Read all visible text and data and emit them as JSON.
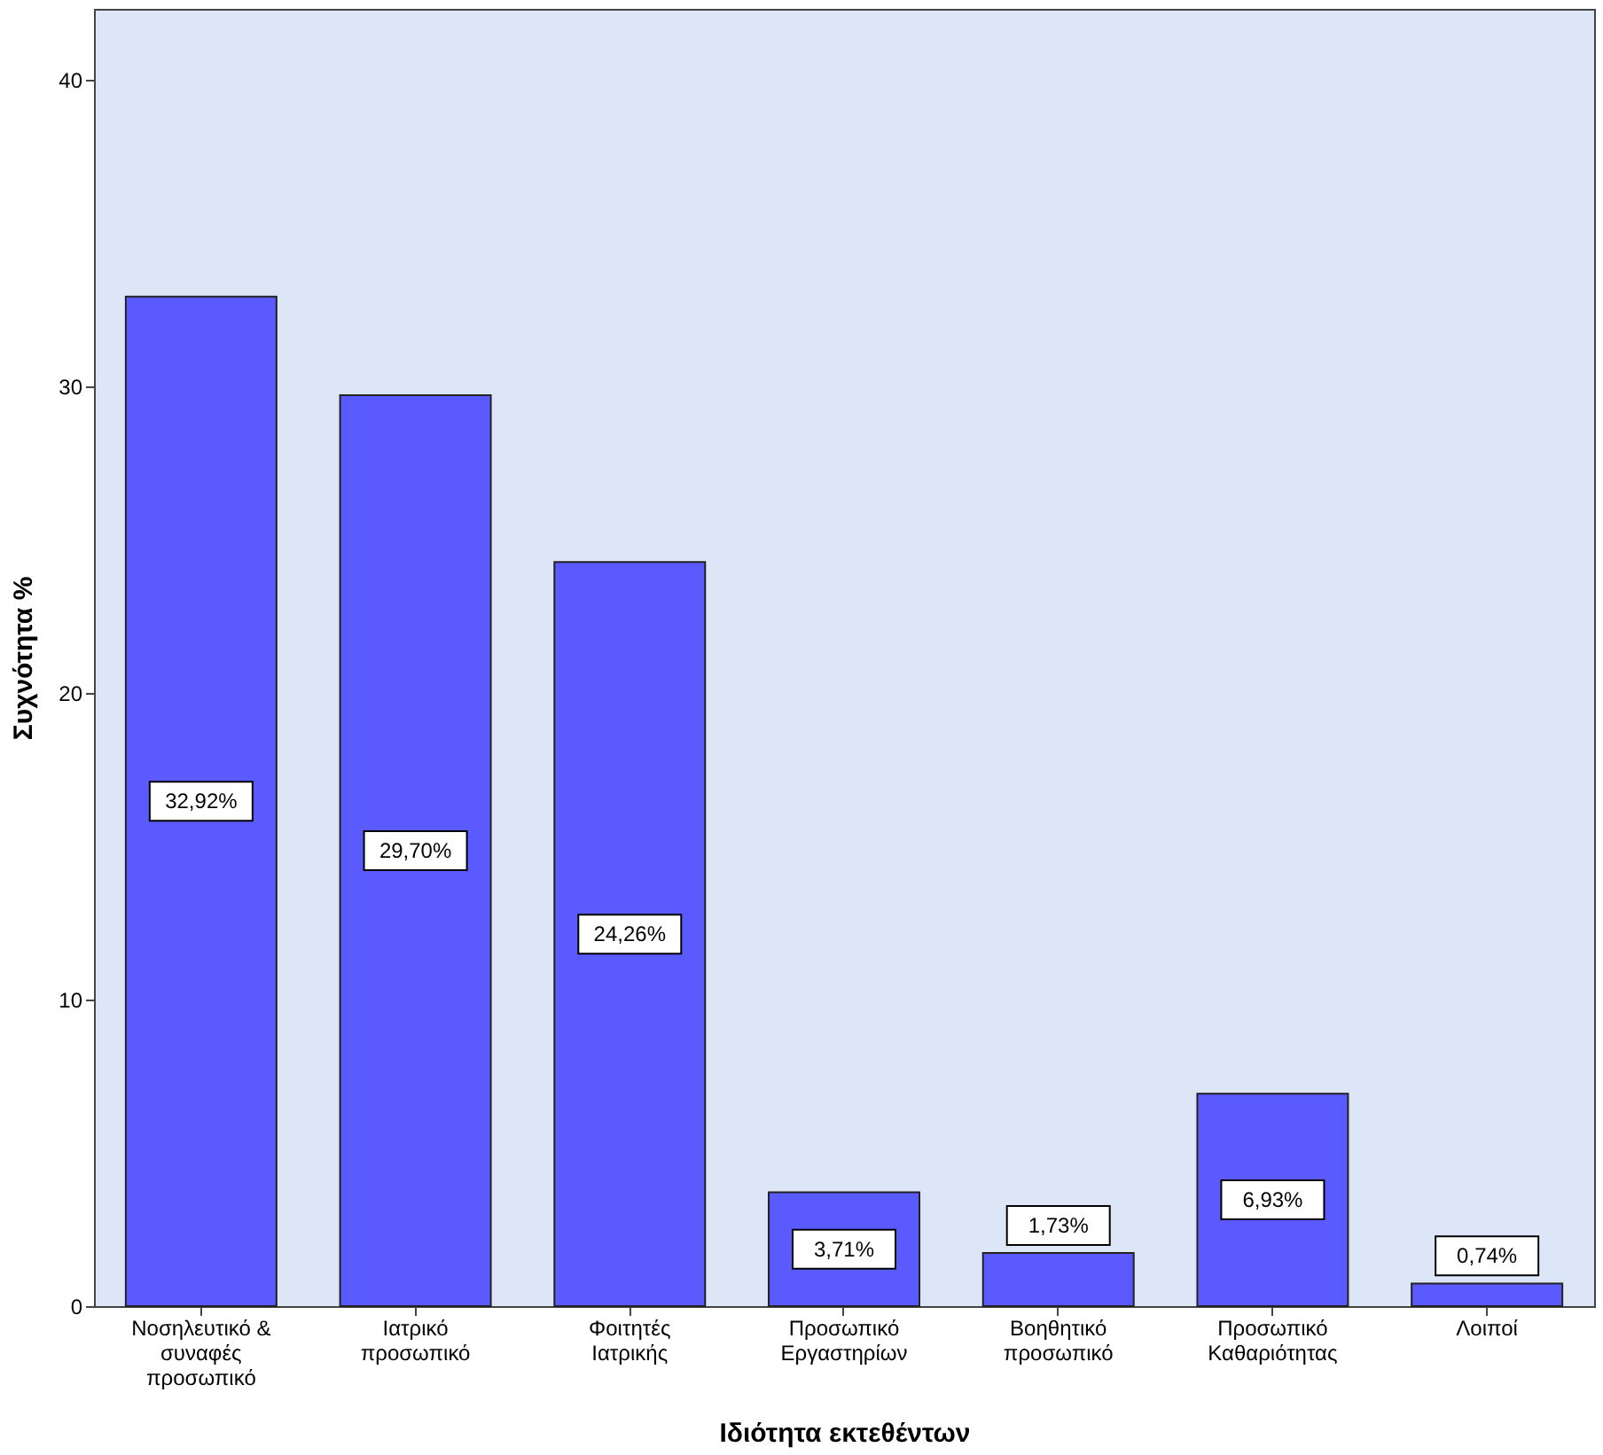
{
  "chart_data": {
    "type": "bar",
    "xlabel": "Ιδιότητα εκτεθέντων",
    "ylabel": "Συχνότητα %",
    "categories": [
      "Νοσηλευτικό &\nσυναφές\nπροσωπικό",
      "Ιατρικό\nπροσωπικό",
      "Φοιτητές\nΙατρικής",
      "Προσωπικό\nΕργαστηρίων",
      "Βοηθητικό\nπροσωπικό",
      "Προσωπικό\nΚαθαριότητας",
      "Λοιποί"
    ],
    "values": [
      32.92,
      29.7,
      24.26,
      3.71,
      1.73,
      6.93,
      0.74
    ],
    "value_labels": [
      "32,92%",
      "29,70%",
      "24,26%",
      "3,71%",
      "1,73%",
      "6,93%",
      "0,74%"
    ],
    "color": "#5a5aff",
    "ylim": [
      0,
      42.3
    ],
    "yticks": [
      0,
      10,
      20,
      30,
      40
    ],
    "grid": false
  }
}
